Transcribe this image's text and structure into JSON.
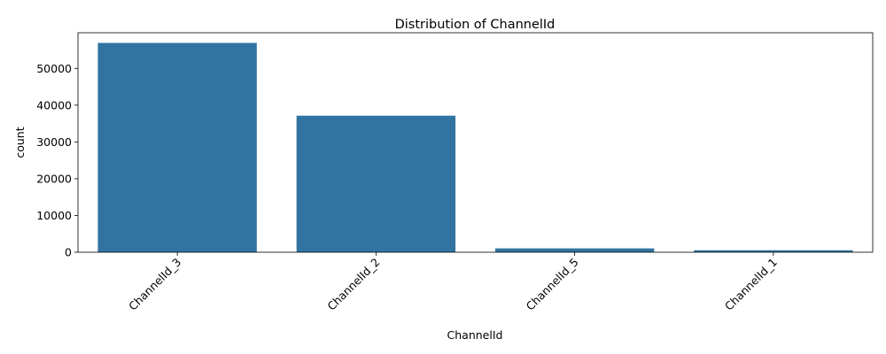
{
  "chart_data": {
    "type": "bar",
    "title": "Distribution of ChannelId",
    "xlabel": "ChannelId",
    "ylabel": "count",
    "categories": [
      "ChannelId_3",
      "ChannelId_2",
      "ChannelId_5",
      "ChannelId_1"
    ],
    "values": [
      56935,
      37141,
      1048,
      538
    ],
    "ylim": [
      0,
      59700
    ],
    "yticks": [
      0,
      10000,
      20000,
      30000,
      40000,
      50000
    ],
    "bar_color": "#3274a1",
    "grid": false,
    "legend": false,
    "xtick_rotation_deg": 45
  }
}
